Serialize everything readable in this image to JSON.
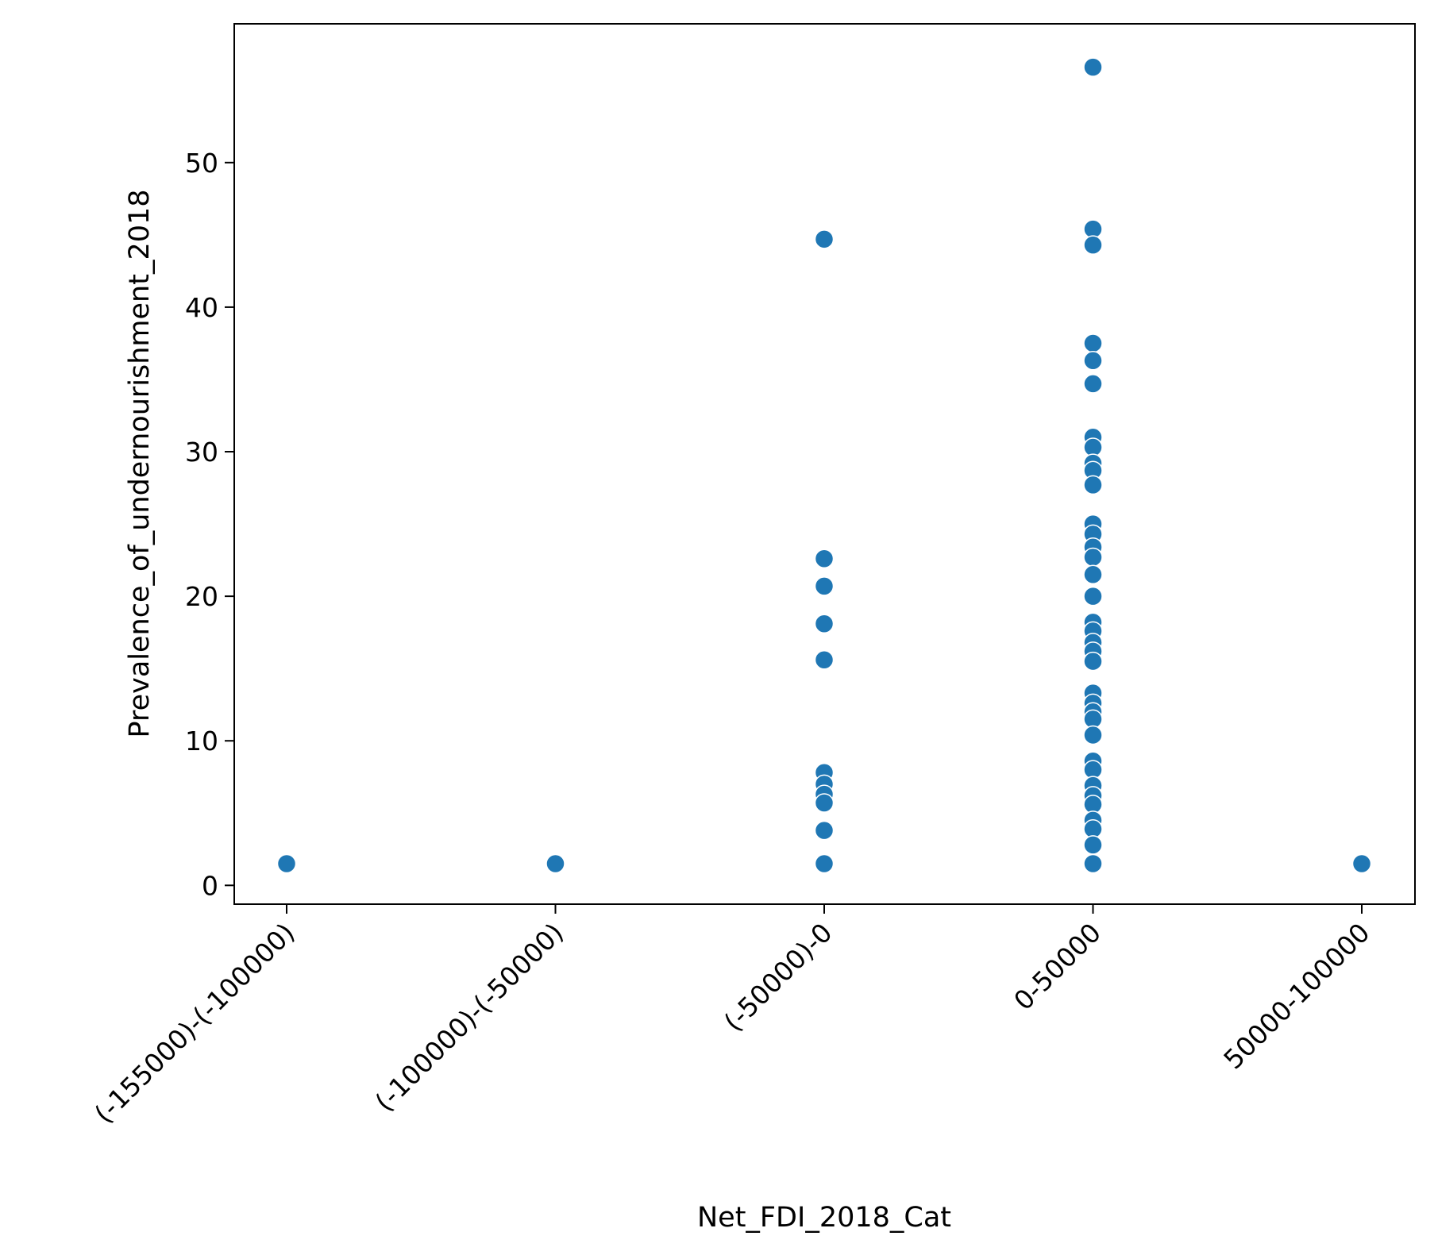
{
  "chart_data": {
    "type": "scatter",
    "title": "",
    "xlabel": "Net_FDI_2018_Cat",
    "ylabel": "Prevalence_of_undernourishment_2018",
    "categories": [
      "(-155000)-(-100000)",
      "(-100000)-(-50000)",
      "(-50000)-0",
      "0-50000",
      "50000-100000"
    ],
    "yticks": [
      0,
      10,
      20,
      30,
      40,
      50
    ],
    "ylim": [
      -1.3,
      59.6
    ],
    "grid": false,
    "colors": {
      "marker": "#1f77b4",
      "marker_edge": "#ffffff",
      "axis": "#000000"
    },
    "points": [
      {
        "x": "(-155000)-(-100000)",
        "y": 1.5
      },
      {
        "x": "(-100000)-(-50000)",
        "y": 1.5
      },
      {
        "x": "(-50000)-0",
        "y": 44.7
      },
      {
        "x": "(-50000)-0",
        "y": 22.6
      },
      {
        "x": "(-50000)-0",
        "y": 20.7
      },
      {
        "x": "(-50000)-0",
        "y": 18.1
      },
      {
        "x": "(-50000)-0",
        "y": 15.6
      },
      {
        "x": "(-50000)-0",
        "y": 7.8
      },
      {
        "x": "(-50000)-0",
        "y": 7.0
      },
      {
        "x": "(-50000)-0",
        "y": 6.3
      },
      {
        "x": "(-50000)-0",
        "y": 5.7
      },
      {
        "x": "(-50000)-0",
        "y": 3.8
      },
      {
        "x": "(-50000)-0",
        "y": 1.5
      },
      {
        "x": "0-50000",
        "y": 56.6
      },
      {
        "x": "0-50000",
        "y": 45.4
      },
      {
        "x": "0-50000",
        "y": 44.3
      },
      {
        "x": "0-50000",
        "y": 37.5
      },
      {
        "x": "0-50000",
        "y": 36.3
      },
      {
        "x": "0-50000",
        "y": 34.7
      },
      {
        "x": "0-50000",
        "y": 31.0
      },
      {
        "x": "0-50000",
        "y": 30.3
      },
      {
        "x": "0-50000",
        "y": 29.2
      },
      {
        "x": "0-50000",
        "y": 28.7
      },
      {
        "x": "0-50000",
        "y": 27.7
      },
      {
        "x": "0-50000",
        "y": 25.0
      },
      {
        "x": "0-50000",
        "y": 24.3
      },
      {
        "x": "0-50000",
        "y": 23.4
      },
      {
        "x": "0-50000",
        "y": 22.7
      },
      {
        "x": "0-50000",
        "y": 21.5
      },
      {
        "x": "0-50000",
        "y": 20.0
      },
      {
        "x": "0-50000",
        "y": 18.2
      },
      {
        "x": "0-50000",
        "y": 17.6
      },
      {
        "x": "0-50000",
        "y": 16.8
      },
      {
        "x": "0-50000",
        "y": 16.2
      },
      {
        "x": "0-50000",
        "y": 15.5
      },
      {
        "x": "0-50000",
        "y": 13.3
      },
      {
        "x": "0-50000",
        "y": 12.6
      },
      {
        "x": "0-50000",
        "y": 12.0
      },
      {
        "x": "0-50000",
        "y": 11.5
      },
      {
        "x": "0-50000",
        "y": 10.4
      },
      {
        "x": "0-50000",
        "y": 8.6
      },
      {
        "x": "0-50000",
        "y": 8.0
      },
      {
        "x": "0-50000",
        "y": 6.9
      },
      {
        "x": "0-50000",
        "y": 6.2
      },
      {
        "x": "0-50000",
        "y": 5.6
      },
      {
        "x": "0-50000",
        "y": 4.5
      },
      {
        "x": "0-50000",
        "y": 3.9
      },
      {
        "x": "0-50000",
        "y": 2.8
      },
      {
        "x": "0-50000",
        "y": 1.5
      },
      {
        "x": "50000-100000",
        "y": 1.5
      }
    ]
  }
}
